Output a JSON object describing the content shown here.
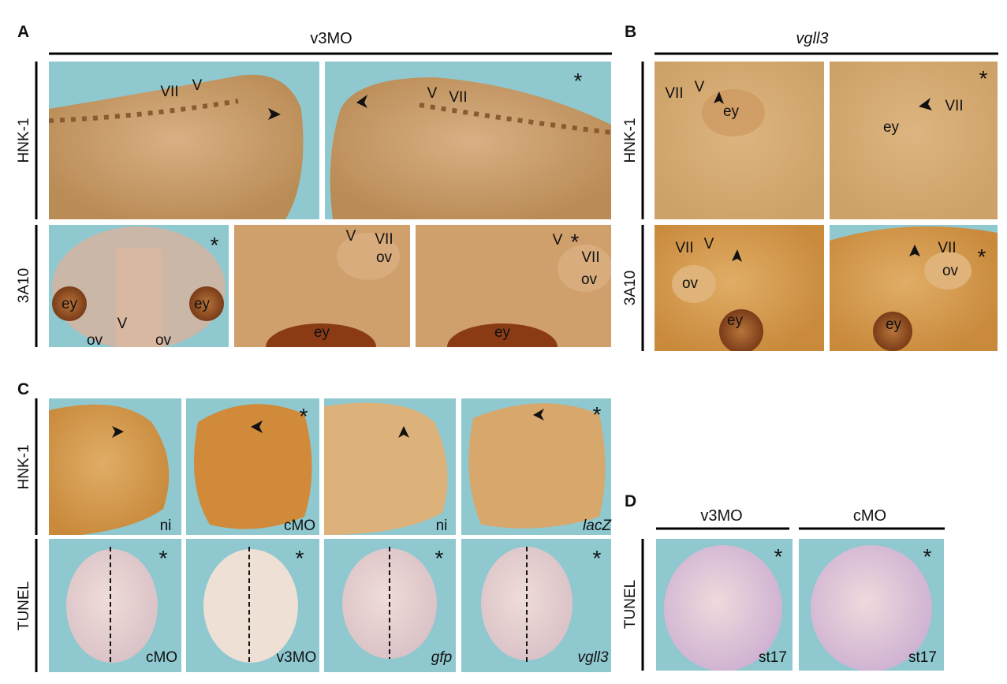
{
  "panels": [
    {
      "label": "A",
      "header": "v3MO",
      "row_labels": [
        "HNK-1",
        "3A10"
      ],
      "images": [
        {
          "annotations": [
            "VII",
            "V"
          ]
        },
        {
          "annotations": [
            "*",
            "V",
            "VII"
          ]
        },
        {
          "annotations": [
            "*",
            "ey",
            "ey",
            "V",
            "ov",
            "ov"
          ]
        },
        {
          "annotations": [
            "V",
            "VII",
            "ov",
            "ey"
          ]
        },
        {
          "annotations": [
            "V",
            "*",
            "VII",
            "ov",
            "ey"
          ]
        }
      ]
    },
    {
      "label": "B",
      "header": "vgll3",
      "row_labels": [
        "HNK-1",
        "3A10"
      ],
      "images": [
        {
          "annotations": [
            "VII",
            "V",
            "ey"
          ]
        },
        {
          "annotations": [
            "*",
            "VII",
            "ey"
          ]
        },
        {
          "annotations": [
            "VII",
            "V",
            "ov",
            "ey"
          ]
        },
        {
          "annotations": [
            "*",
            "VII",
            "ov",
            "ey"
          ]
        }
      ]
    },
    {
      "label": "C",
      "row_labels": [
        "HNK-1",
        "TUNEL"
      ],
      "images": [
        {
          "annotations": [
            "ni"
          ]
        },
        {
          "annotations": [
            "*",
            "cMO"
          ]
        },
        {
          "annotations": [
            "ni"
          ]
        },
        {
          "annotations": [
            "*",
            "lacZ"
          ]
        },
        {
          "annotations": [
            "*",
            "cMO"
          ]
        },
        {
          "annotations": [
            "*",
            "v3MO"
          ]
        },
        {
          "annotations": [
            "*",
            "gfp"
          ]
        },
        {
          "annotations": [
            "*",
            "vgll3"
          ]
        }
      ]
    },
    {
      "label": "D",
      "headers": [
        "v3MO",
        "cMO"
      ],
      "row_labels": [
        "TUNEL"
      ],
      "images": [
        {
          "annotations": [
            "*",
            "st17"
          ]
        },
        {
          "annotations": [
            "*",
            "st17"
          ]
        }
      ]
    }
  ]
}
